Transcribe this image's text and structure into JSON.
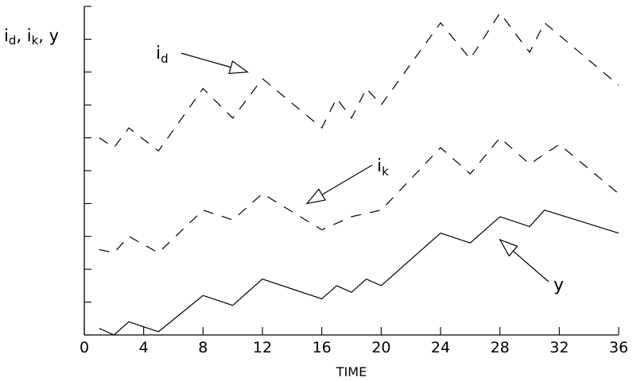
{
  "chart_data": {
    "type": "line",
    "title": "",
    "xlabel": "TIME",
    "ylabel": "i_d, i_k, y",
    "ylabel_parts": {
      "a": "i",
      "a_sub": "d",
      "sep1": ", ",
      "b": "i",
      "b_sub": "k",
      "sep2": ", ",
      "c": "y"
    },
    "xlim": [
      0,
      36
    ],
    "ylim": [
      0,
      100
    ],
    "x_ticks": [
      0,
      4,
      8,
      12,
      16,
      20,
      24,
      28,
      32,
      36
    ],
    "x_tick_labels": [
      "0",
      "4",
      "8",
      "12",
      "16",
      "20",
      "24",
      "28",
      "32",
      "36"
    ],
    "y_ticks": [
      0,
      10,
      20,
      30,
      40,
      50,
      60,
      70,
      80,
      90,
      100
    ],
    "y_tick_labels": [],
    "grid": false,
    "legend": "none",
    "series": [
      {
        "name": "i_d",
        "style": "dashed",
        "x": [
          1,
          2,
          3,
          5,
          8,
          10,
          12,
          16,
          17,
          18,
          19,
          20,
          24,
          26,
          28,
          30,
          31,
          36
        ],
        "y": [
          60,
          57,
          63,
          56,
          75,
          66,
          78,
          63,
          72,
          66,
          75,
          70,
          95,
          84,
          98,
          86,
          95,
          76
        ]
      },
      {
        "name": "i_k",
        "style": "dashed",
        "x": [
          1,
          2,
          3,
          5,
          8,
          10,
          12,
          16,
          18,
          20,
          24,
          26,
          28,
          30,
          32,
          36
        ],
        "y": [
          26,
          25,
          30,
          25,
          38,
          35,
          43,
          32,
          36,
          38,
          57,
          49,
          60,
          52,
          58,
          43
        ]
      },
      {
        "name": "y",
        "style": "solid",
        "x": [
          1,
          2,
          3,
          5,
          8,
          10,
          12,
          16,
          17,
          18,
          19,
          20,
          24,
          26,
          28,
          30,
          31,
          36
        ],
        "y": [
          2,
          0,
          4,
          1,
          12,
          9,
          17,
          11,
          15,
          13,
          17,
          15,
          31,
          28,
          36,
          33,
          38,
          31
        ]
      }
    ],
    "annotations": [
      {
        "id": "id",
        "text": "i",
        "sub": "d",
        "series": "i_d",
        "target": [
          11,
          80
        ]
      },
      {
        "id": "ik",
        "text": "i",
        "sub": "k",
        "series": "i_k",
        "target": [
          15,
          40
        ]
      },
      {
        "id": "y",
        "text": "y",
        "sub": "",
        "series": "y",
        "target": [
          28,
          29
        ]
      }
    ]
  }
}
